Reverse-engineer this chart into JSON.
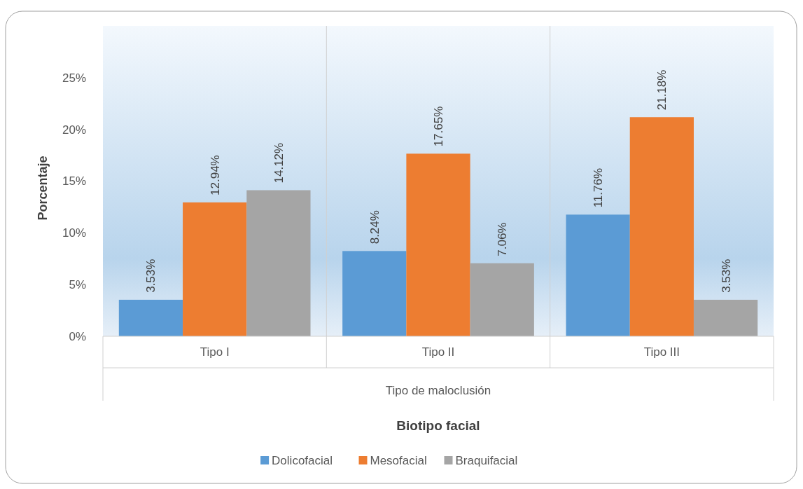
{
  "chart_data": {
    "type": "bar",
    "categories": [
      "Tipo I",
      "Tipo II",
      "Tipo III"
    ],
    "series": [
      {
        "name": "Dolicofacial",
        "color": "#5b9bd5",
        "values": [
          3.53,
          8.24,
          11.76
        ],
        "value_labels": [
          "3.53%",
          "8.24%",
          "11.76%"
        ]
      },
      {
        "name": "Mesofacial",
        "color": "#ed7d31",
        "values": [
          12.94,
          17.65,
          21.18
        ],
        "value_labels": [
          "12.94%",
          "17.65%",
          "21.18%"
        ]
      },
      {
        "name": "Braquifacial",
        "color": "#a5a5a5",
        "values": [
          14.12,
          7.06,
          3.53
        ],
        "value_labels": [
          "14.12%",
          "7.06%",
          "3.53%"
        ]
      }
    ],
    "ylim": [
      0,
      30
    ],
    "yticks": [
      {
        "value": 0,
        "label": "0%"
      },
      {
        "value": 5,
        "label": "5%"
      },
      {
        "value": 10,
        "label": "10%"
      },
      {
        "value": 15,
        "label": "15%"
      },
      {
        "value": 20,
        "label": "20%"
      },
      {
        "value": 25,
        "label": "25%"
      }
    ],
    "ylabel": "Porcentaje",
    "xlabel": "Tipo de maloclusión",
    "legend_title": "Biotipo facial",
    "legend": "bottom",
    "grid": "x"
  }
}
